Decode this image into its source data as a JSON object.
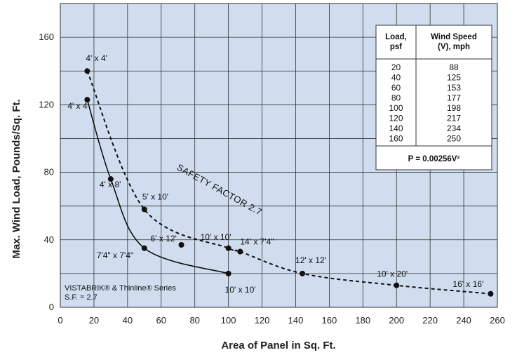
{
  "chart_data": {
    "type": "line",
    "xlabel": "Area of Panel in Sq. Ft.",
    "ylabel": "Max. Wind Load, Pounds/Sq. Ft.",
    "xlim": [
      0,
      260
    ],
    "ylim": [
      0,
      180
    ],
    "x_ticks": [
      0,
      20,
      40,
      60,
      80,
      100,
      120,
      140,
      160,
      180,
      200,
      220,
      240,
      260
    ],
    "y_ticks": [
      0,
      40,
      80,
      120,
      160
    ],
    "grid": true,
    "series": [
      {
        "style": "solid",
        "points": [
          {
            "x": 16,
            "y": 123,
            "label": "4' x 4'"
          },
          {
            "x": 30,
            "y": 76,
            "label": "4' x 8'"
          },
          {
            "x": 50,
            "y": 35,
            "label": "7'4\" x 7'4\""
          },
          {
            "x": 100,
            "y": 20,
            "label": "10' x 10'"
          }
        ]
      },
      {
        "style": "dashed",
        "points": [
          {
            "x": 16,
            "y": 140,
            "label": "4' x 4'"
          },
          {
            "x": 50,
            "y": 58,
            "label": "5' x 10'"
          },
          {
            "x": 100,
            "y": 35,
            "label": "10' x 10'"
          },
          {
            "x": 107,
            "y": 33,
            "label": "14' x 7'4\""
          },
          {
            "x": 144,
            "y": 20,
            "label": "12' x 12'"
          },
          {
            "x": 200,
            "y": 13,
            "label": "10' x 20'"
          },
          {
            "x": 256,
            "y": 8,
            "label": "16' x 16'"
          }
        ]
      }
    ],
    "extra_points": [
      {
        "x": 72,
        "y": 37,
        "label": "6' x 12'"
      }
    ],
    "curve_label": "SAFETY FACTOR 2.7",
    "note_lines": [
      "VISTABRIK® & Thinline® Series",
      "S.F. = 2.7"
    ],
    "table": {
      "headers": [
        [
          "Load,",
          "psf"
        ],
        [
          "Wind Speed",
          "(V), mph"
        ]
      ],
      "rows": [
        [
          "20",
          "88"
        ],
        [
          "40",
          "125"
        ],
        [
          "60",
          "153"
        ],
        [
          "80",
          "177"
        ],
        [
          "100",
          "198"
        ],
        [
          "120",
          "217"
        ],
        [
          "140",
          "234"
        ],
        [
          "160",
          "250"
        ]
      ],
      "formula": "P = 0.00256V²"
    }
  }
}
